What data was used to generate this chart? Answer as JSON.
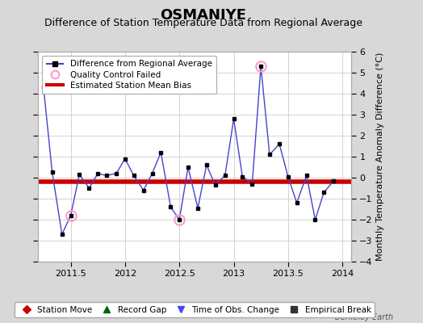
{
  "title": "OSMANIYE",
  "subtitle": "Difference of Station Temperature Data from Regional Average",
  "ylabel_right": "Monthly Temperature Anomaly Difference (°C)",
  "xlim": [
    2011.2,
    2014.08
  ],
  "ylim": [
    -4,
    6
  ],
  "yticks": [
    -4,
    -3,
    -2,
    -1,
    0,
    1,
    2,
    3,
    4,
    5,
    6
  ],
  "xticks": [
    2011.5,
    2012.0,
    2012.5,
    2013.0,
    2013.5,
    2014.0
  ],
  "xtick_labels": [
    "2011.5",
    "2012",
    "2012.5",
    "2013",
    "2013.5",
    "2014"
  ],
  "bias_line": -0.2,
  "background_color": "#d8d8d8",
  "plot_bg_color": "#ffffff",
  "line_color": "#4444cc",
  "marker_color": "#000000",
  "bias_color": "#cc0000",
  "qc_fail_color": "#ff99cc",
  "data_x": [
    2011.25,
    2011.33,
    2011.42,
    2011.5,
    2011.58,
    2011.67,
    2011.75,
    2011.83,
    2011.92,
    2012.0,
    2012.08,
    2012.17,
    2012.25,
    2012.33,
    2012.42,
    2012.5,
    2012.58,
    2012.67,
    2012.75,
    2012.83,
    2012.92,
    2013.0,
    2013.08,
    2013.17,
    2013.25,
    2013.33,
    2013.42,
    2013.5,
    2013.58,
    2013.67,
    2013.75,
    2013.83,
    2013.92
  ],
  "data_y": [
    4.3,
    0.25,
    -2.7,
    -1.8,
    0.15,
    -0.5,
    0.2,
    0.1,
    0.2,
    0.9,
    0.1,
    -0.6,
    0.2,
    1.2,
    -1.4,
    -2.0,
    0.5,
    -1.45,
    0.6,
    -0.35,
    0.1,
    2.8,
    0.05,
    -0.3,
    5.3,
    1.1,
    1.6,
    0.05,
    -1.2,
    0.1,
    -2.0,
    -0.7,
    -0.15
  ],
  "qc_fail_indices": [
    3,
    15,
    24
  ],
  "bottom_legend": [
    {
      "label": "Station Move",
      "marker": "D",
      "color": "#cc0000"
    },
    {
      "label": "Record Gap",
      "marker": "^",
      "color": "#006600"
    },
    {
      "label": "Time of Obs. Change",
      "marker": "v",
      "color": "#4444ff"
    },
    {
      "label": "Empirical Break",
      "marker": "s",
      "color": "#333333"
    }
  ],
  "watermark": "Berkeley Earth",
  "title_fontsize": 13,
  "subtitle_fontsize": 9,
  "tick_fontsize": 8,
  "label_fontsize": 8
}
